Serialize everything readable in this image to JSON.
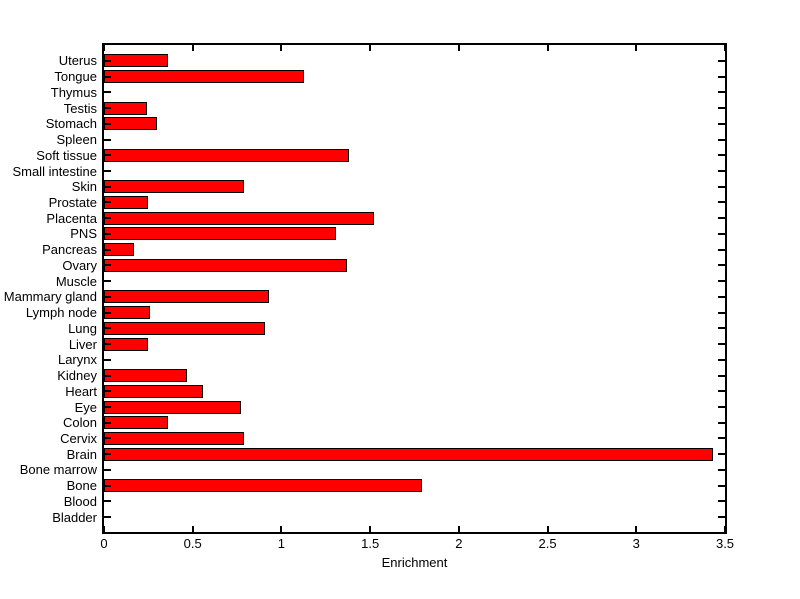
{
  "figure": {
    "background_color": "#ffffff",
    "axes_color": "#000000"
  },
  "chart_data": {
    "type": "bar",
    "orientation": "horizontal",
    "title": "",
    "xlabel": "Enrichment",
    "ylabel": "",
    "xlim": [
      0,
      3.5
    ],
    "grid": false,
    "legend": null,
    "bar_color": "#ff0000",
    "bar_edge_color": "#000000",
    "xticks": [
      0,
      0.5,
      1,
      1.5,
      2,
      2.5,
      3,
      3.5
    ],
    "xtick_labels": [
      "0",
      "0.5",
      "1",
      "1.5",
      "2",
      "2.5",
      "3",
      "3.5"
    ],
    "categories_top_to_bottom": [
      "Uterus",
      "Tongue",
      "Thymus",
      "Testis",
      "Stomach",
      "Spleen",
      "Soft tissue",
      "Small intestine",
      "Skin",
      "Prostate",
      "Placenta",
      "PNS",
      "Pancreas",
      "Ovary",
      "Muscle",
      "Mammary gland",
      "Lymph node",
      "Lung",
      "Liver",
      "Larynx",
      "Kidney",
      "Heart",
      "Eye",
      "Colon",
      "Cervix",
      "Brain",
      "Bone marrow",
      "Bone",
      "Blood",
      "Bladder"
    ],
    "values": [
      0.36,
      1.13,
      0,
      0.24,
      0.3,
      0,
      1.38,
      0,
      0.79,
      0.25,
      1.52,
      1.31,
      0.17,
      1.37,
      0,
      0.93,
      0.26,
      0.91,
      0.25,
      0,
      0.47,
      0.56,
      0.77,
      0.36,
      0.79,
      3.43,
      0,
      1.79,
      0,
      0
    ]
  }
}
